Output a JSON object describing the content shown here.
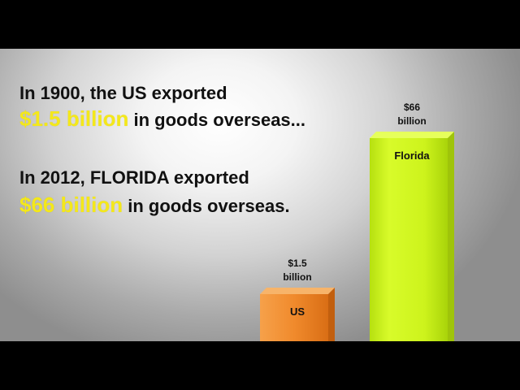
{
  "headline": {
    "line1": "In 1900, the US exported",
    "line2_amount": "$1.5 billion",
    "line2_rest": " in goods overseas...",
    "line3": "In 2012, FLORIDA exported",
    "line4_amount": "$66 billion",
    "line4_rest": " in goods overseas."
  },
  "colors": {
    "amount_highlight": "#f4e81a",
    "us_bar": "#f08a2c",
    "florida_bar": "#ccf318"
  },
  "chart_data": {
    "type": "bar",
    "title": "",
    "xlabel": "",
    "ylabel": "",
    "categories": [
      "US",
      "Florida"
    ],
    "values": [
      1.5,
      66
    ],
    "value_labels": [
      [
        "$1.5",
        "billion"
      ],
      [
        "$66",
        "billion"
      ]
    ],
    "colors": [
      "#f08a2c",
      "#ccf318"
    ],
    "grid": false
  }
}
